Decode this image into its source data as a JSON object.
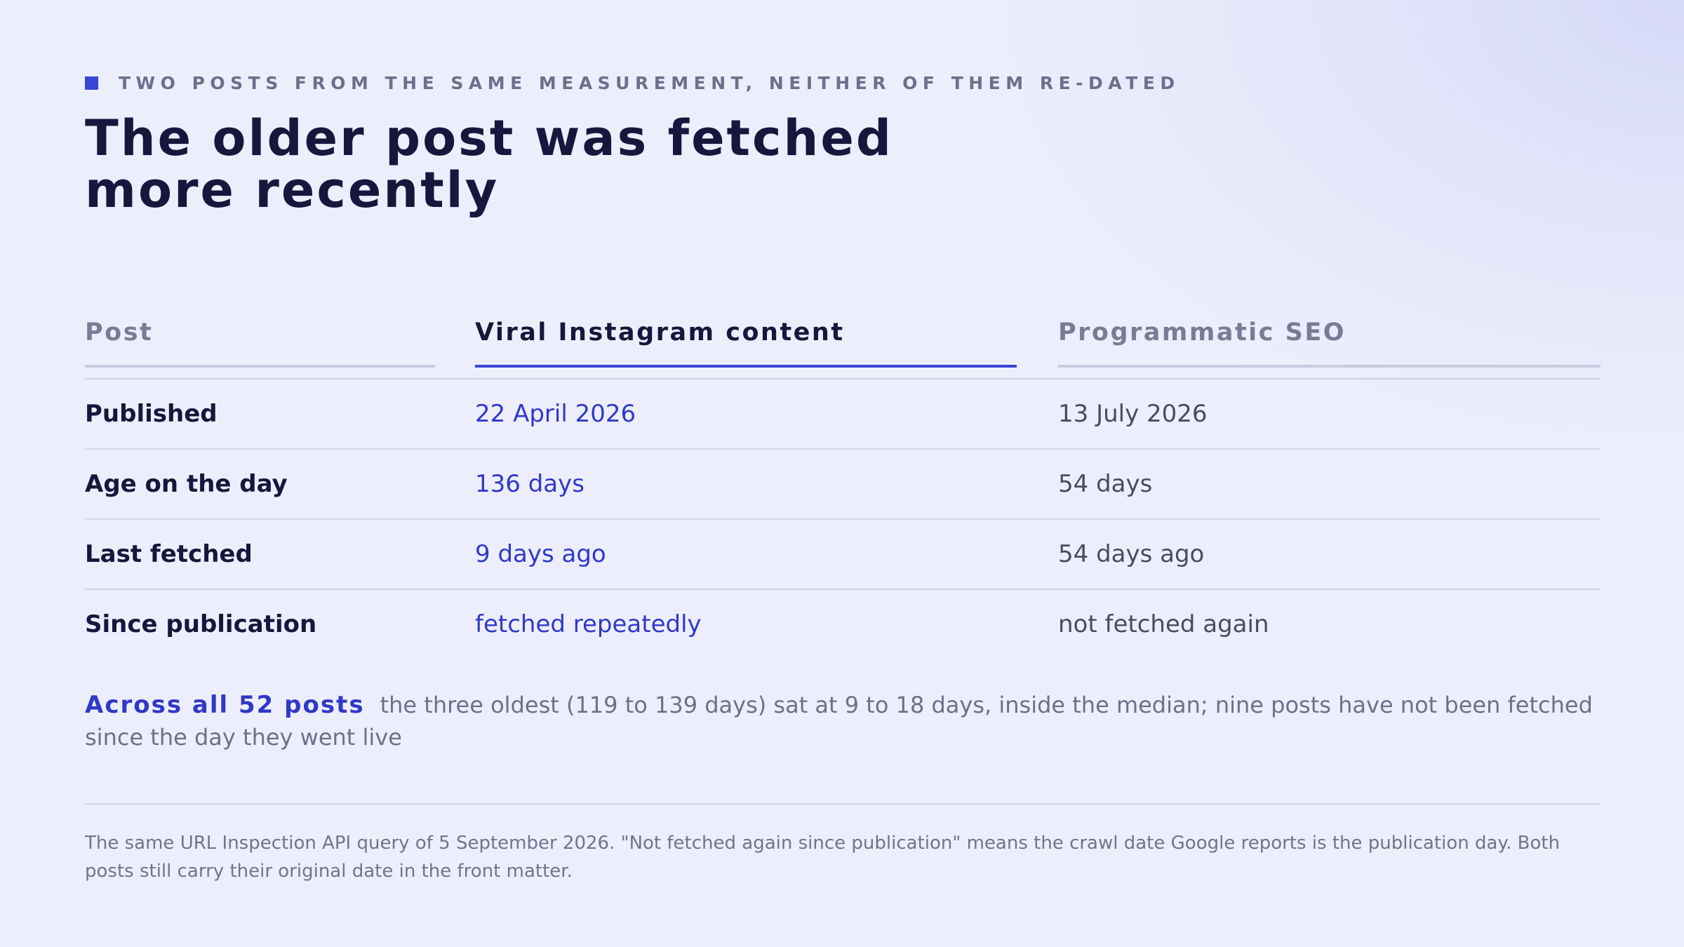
{
  "eyebrow": "TWO POSTS FROM THE SAME MEASUREMENT, NEITHER OF THEM RE-DATED",
  "title": {
    "lines": [
      "The older post was fetched",
      "more recently"
    ]
  },
  "table": {
    "header": [
      "Post",
      "Viral Instagram content",
      "Programmatic SEO"
    ],
    "rows": [
      [
        "Published",
        "22 April 2026",
        "13 July 2026"
      ],
      [
        "Age on the day",
        "136 days",
        "54 days"
      ],
      [
        "Last fetched",
        "9 days ago",
        "54 days ago"
      ],
      [
        "Since publication",
        "fetched repeatedly",
        "not fetched again"
      ]
    ]
  },
  "summary": {
    "lead": "Across all 52 posts",
    "text": "the three oldest (119 to 139 days) sat at 9 to 18 days, inside the median; nine posts have not been fetched since the day they went live"
  },
  "footnote": "The same URL Inspection API query of 5 September 2026. \"Not fetched again since publication\" means the crawl date Google reports is the publication day. Both posts still carry their original date in the front matter."
}
